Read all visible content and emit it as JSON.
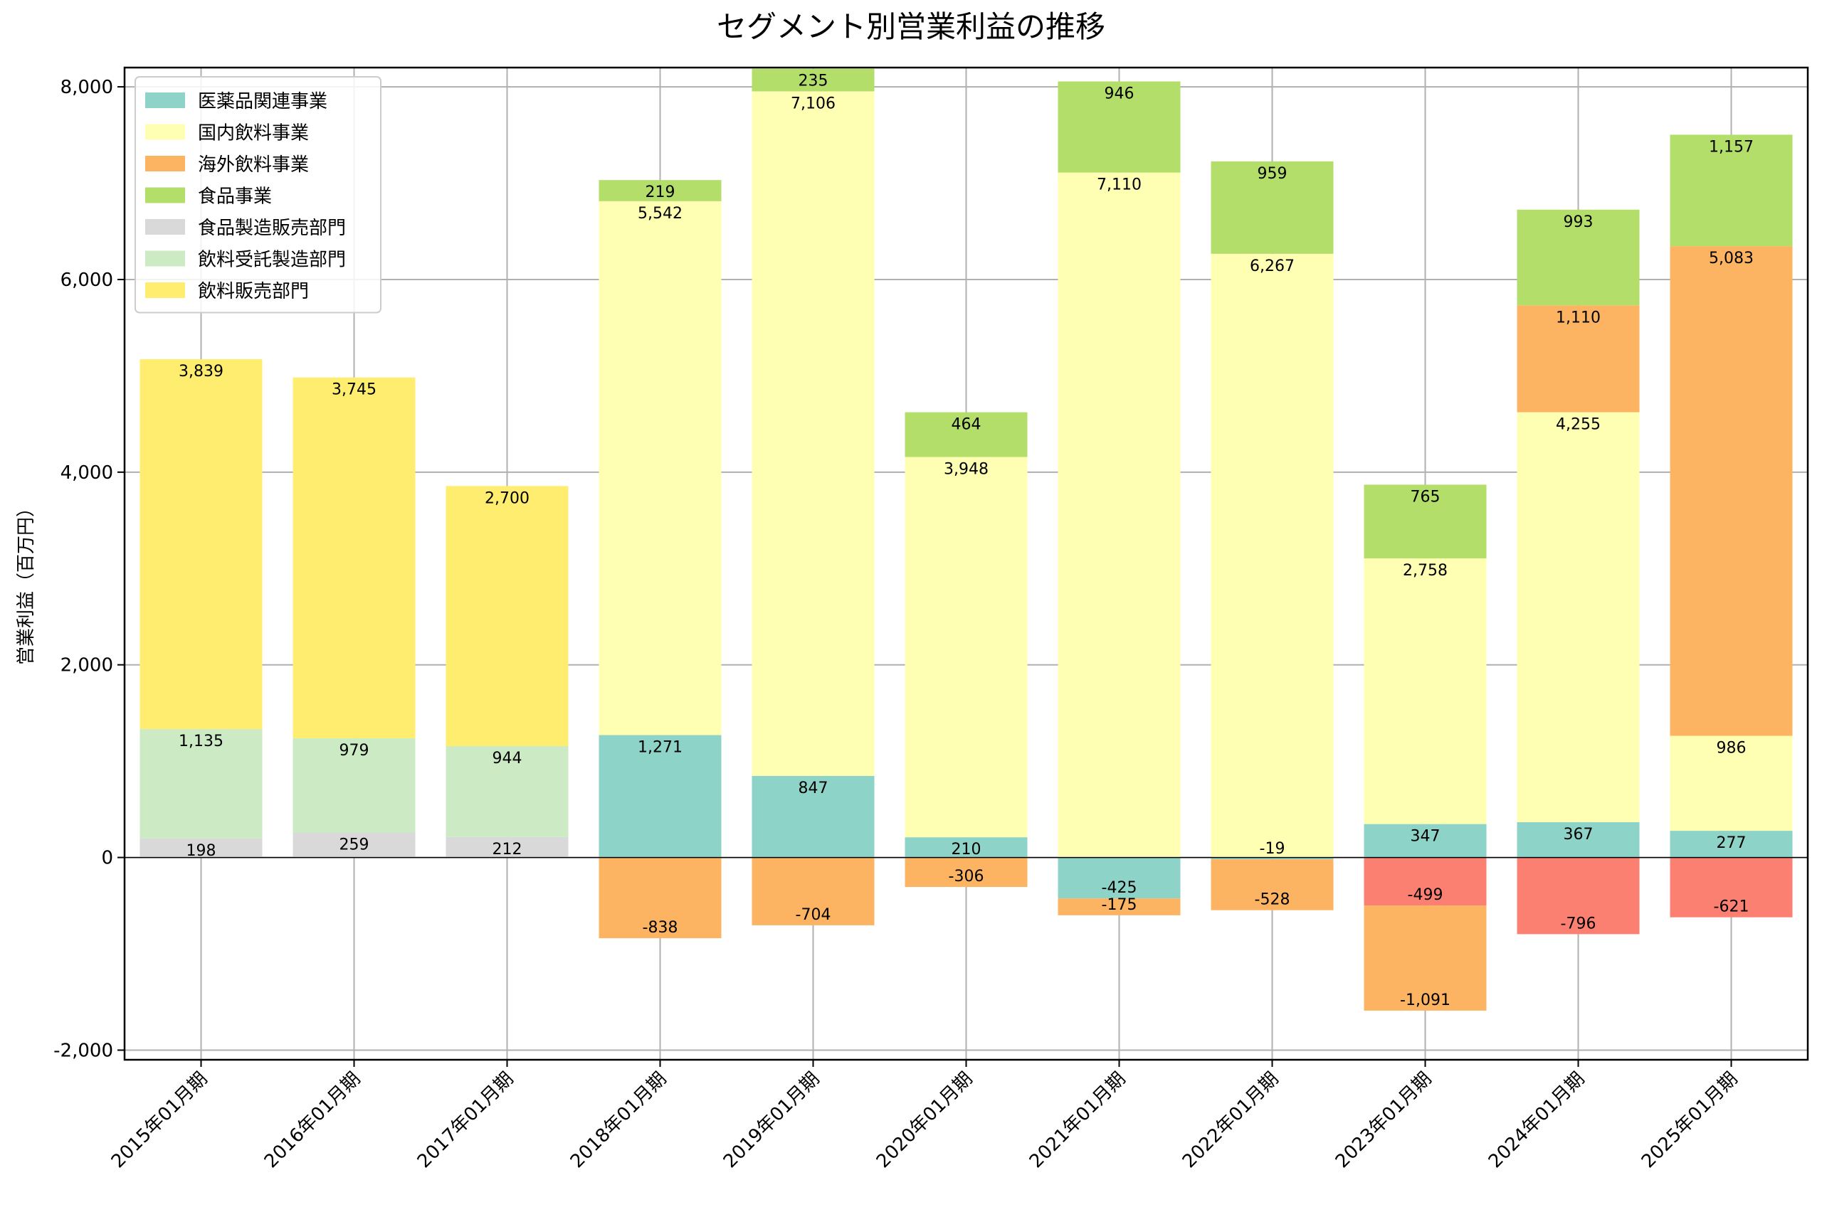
{
  "chart_data": {
    "type": "bar",
    "stacked": true,
    "title": "セグメント別営業利益の推移",
    "xlabel": "",
    "ylabel": "営業利益（百万円）",
    "ylim": [
      -2100,
      8200
    ],
    "yticks": [
      -2000,
      0,
      2000,
      4000,
      6000,
      8000
    ],
    "ytick_labels": [
      "-2,000",
      "0",
      "2,000",
      "4,000",
      "6,000",
      "8,000"
    ],
    "grid": true,
    "legend_position": "top-left",
    "categories": [
      "2015年01月期",
      "2016年01月期",
      "2017年01月期",
      "2018年01月期",
      "2019年01月期",
      "2020年01月期",
      "2021年01月期",
      "2022年01月期",
      "2023年01月期",
      "2024年01月期",
      "2025年01月期"
    ],
    "series": [
      {
        "name": "医薬品関連事業",
        "color": "#8dd3c7",
        "values": [
          null,
          null,
          null,
          1271,
          847,
          210,
          -425,
          -19,
          347,
          367,
          277
        ]
      },
      {
        "name": "国内飲料事業",
        "color": "#ffffb3",
        "values": [
          null,
          null,
          null,
          5542,
          7106,
          3948,
          7110,
          6267,
          2758,
          4255,
          986
        ]
      },
      {
        "name": "海外飲料事業",
        "color": "#fdb462",
        "values": [
          null,
          null,
          null,
          -838,
          -704,
          -306,
          -175,
          -528,
          -1091,
          1110,
          5083
        ]
      },
      {
        "name": "食品事業",
        "color": "#b3de69",
        "values": [
          null,
          null,
          null,
          219,
          235,
          464,
          946,
          959,
          765,
          993,
          1157
        ]
      },
      {
        "name": "食品製造販売部門",
        "color": "#d9d9d9",
        "values": [
          198,
          259,
          212,
          null,
          null,
          null,
          null,
          null,
          null,
          null,
          null
        ]
      },
      {
        "name": "飲料受託製造部門",
        "color": "#ccebc5",
        "values": [
          1135,
          979,
          944,
          null,
          null,
          null,
          null,
          null,
          null,
          null,
          null
        ]
      },
      {
        "name": "飲料販売部門",
        "color": "#ffed6f",
        "values": [
          3839,
          3745,
          2700,
          null,
          null,
          null,
          null,
          null,
          null,
          null,
          null
        ]
      },
      {
        "name": "",
        "color": "#fb8072",
        "values": [
          null,
          null,
          null,
          null,
          null,
          null,
          null,
          null,
          -499,
          -796,
          -621
        ]
      }
    ],
    "stack_order": [
      [
        4,
        5,
        6
      ],
      [
        4,
        5,
        6
      ],
      [
        4,
        5,
        6
      ],
      [
        0,
        1,
        3,
        2
      ],
      [
        0,
        1,
        3,
        2
      ],
      [
        0,
        1,
        3,
        2
      ],
      [
        1,
        3,
        0,
        2
      ],
      [
        1,
        3,
        0,
        2
      ],
      [
        0,
        1,
        3,
        7,
        2
      ],
      [
        0,
        1,
        2,
        3,
        7
      ],
      [
        0,
        1,
        2,
        3,
        7
      ]
    ]
  }
}
